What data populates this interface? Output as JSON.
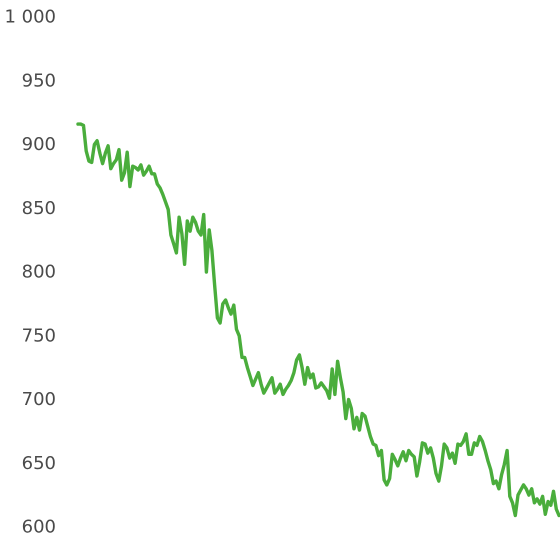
{
  "chart_data": {
    "type": "line",
    "title": "",
    "xlabel": "",
    "ylabel": "",
    "ylim": [
      600,
      1000
    ],
    "y_ticks": [
      1000,
      950,
      900,
      850,
      800,
      750,
      700,
      650,
      600
    ],
    "y_tick_labels": [
      "1 000",
      "950",
      "900",
      "850",
      "800",
      "750",
      "700",
      "650",
      "600"
    ],
    "grid": false,
    "legend": "none",
    "series": [
      {
        "color": "#4aad3c",
        "values": [
          916,
          916,
          915,
          895,
          887,
          886,
          900,
          903,
          893,
          885,
          893,
          899,
          881,
          885,
          888,
          896,
          872,
          878,
          894,
          867,
          883,
          882,
          880,
          884,
          876,
          879,
          883,
          877,
          877,
          869,
          866,
          861,
          855,
          849,
          829,
          822,
          815,
          843,
          830,
          806,
          840,
          832,
          843,
          839,
          832,
          829,
          845,
          800,
          833,
          817,
          790,
          764,
          760,
          775,
          778,
          772,
          767,
          774,
          755,
          750,
          733,
          733,
          725,
          718,
          711,
          716,
          721,
          712,
          705,
          709,
          713,
          717,
          705,
          708,
          712,
          704,
          708,
          711,
          715,
          721,
          731,
          735,
          725,
          712,
          725,
          717,
          720,
          709,
          710,
          713,
          710,
          707,
          701,
          724,
          704,
          730,
          717,
          706,
          685,
          700,
          693,
          677,
          686,
          676,
          689,
          687,
          679,
          671,
          665,
          664,
          656,
          660,
          637,
          633,
          638,
          657,
          653,
          648,
          654,
          659,
          652,
          660,
          657,
          655,
          640,
          651,
          666,
          665,
          658,
          662,
          654,
          642,
          636,
          648,
          665,
          662,
          654,
          658,
          650,
          665,
          664,
          667,
          673,
          657,
          657,
          666,
          664,
          671,
          667,
          660,
          652,
          645,
          634,
          636,
          630,
          641,
          649,
          660,
          624,
          619,
          609,
          625,
          629,
          633,
          630,
          625,
          630,
          619,
          622,
          618,
          624,
          610,
          620,
          617,
          628,
          614,
          609
        ]
      }
    ]
  }
}
